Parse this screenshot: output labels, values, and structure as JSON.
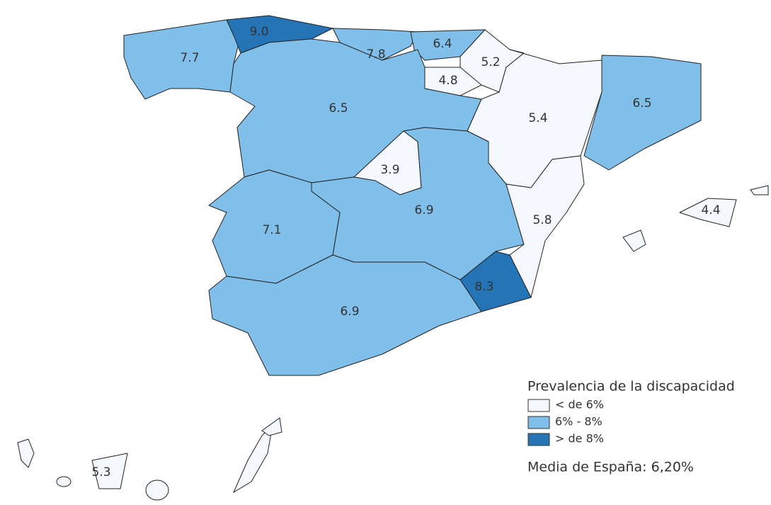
{
  "regions": [
    {
      "label": "7.7",
      "color": "#80bfe9"
    },
    {
      "label": "9.0",
      "color": "#2474b6"
    },
    {
      "label": "7.8",
      "color": "#80bfe9"
    },
    {
      "label": "6.4",
      "color": "#80bfe9"
    },
    {
      "label": "5.2",
      "color": "#f5f9fe"
    },
    {
      "label": "4.8",
      "color": "#f5f9fe"
    },
    {
      "label": "6.5",
      "color": "#80bfe9"
    },
    {
      "label": "5.4",
      "color": "#f5f9fe"
    },
    {
      "label": "6.5",
      "color": "#80bfe9"
    },
    {
      "label": "3.9",
      "color": "#f5f9fe"
    },
    {
      "label": "6.9",
      "color": "#80bfe9"
    },
    {
      "label": "5.8",
      "color": "#f5f9fe"
    },
    {
      "label": "7.1",
      "color": "#80bfe9"
    },
    {
      "label": "6.9",
      "color": "#80bfe9"
    },
    {
      "label": "8.3",
      "color": "#2474b6"
    },
    {
      "label": "4.4",
      "color": "#f5f9fe"
    },
    {
      "label": "5.3",
      "color": "#f5f9fe"
    }
  ],
  "legend": {
    "title": "Prevalencia de la discapacidad",
    "items": [
      {
        "label": "< de 6%",
        "color": "#f5f9fe"
      },
      {
        "label": "6% - 8%",
        "color": "#80bfe9"
      },
      {
        "label": "> de 8%",
        "color": "#2474b6"
      }
    ]
  },
  "note": "Media de España: 6,20%"
}
